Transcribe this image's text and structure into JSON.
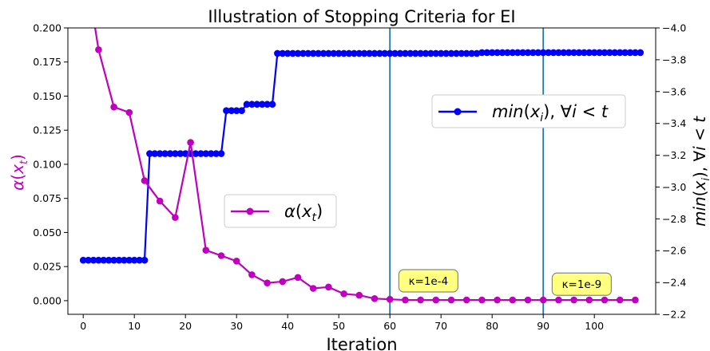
{
  "chart_data": {
    "type": "line",
    "title": "Illustration of Stopping Criteria for EI",
    "xlabel": "Iteration",
    "ylabel_left": "α(x_t)",
    "ylabel_right": "min(x_i), ∀i < t",
    "xlim": [
      -3,
      112
    ],
    "ylim_left": [
      -0.01,
      0.2
    ],
    "ylim_right": [
      -2.2,
      -4.0
    ],
    "right_axis_inverted": true,
    "grid": false,
    "x_ticks": [
      0,
      10,
      20,
      30,
      40,
      50,
      60,
      70,
      80,
      90,
      100
    ],
    "y_left_ticks": [
      0.0,
      0.025,
      0.05,
      0.075,
      0.1,
      0.125,
      0.15,
      0.175,
      0.2
    ],
    "y_left_tick_labels": [
      "0.000",
      "0.025",
      "0.050",
      "0.075",
      "0.100",
      "0.125",
      "0.150",
      "0.175",
      "0.200"
    ],
    "y_right_ticks": [
      -2.2,
      -2.4,
      -2.6,
      -2.8,
      -3.0,
      -3.2,
      -3.4,
      -3.6,
      -3.8,
      -4.0
    ],
    "y_right_tick_labels": [
      "−2.2",
      "−2.4",
      "−2.6",
      "−2.8",
      "−3.0",
      "−3.2",
      "−3.4",
      "−3.6",
      "−3.8",
      "−4.0"
    ],
    "vlines": [
      60,
      90
    ],
    "annotations": [
      {
        "text": "κ=1e-4",
        "x": 63,
        "y_left": 0.014
      },
      {
        "text": "κ=1e-9",
        "x": 93,
        "y_left": 0.0115
      }
    ],
    "series": [
      {
        "name": "α(x_t)",
        "axis": "left",
        "color": "#bf00bf",
        "x": [
          0,
          3,
          6,
          9,
          12,
          15,
          18,
          21,
          24,
          27,
          30,
          33,
          36,
          39,
          42,
          45,
          48,
          51,
          54,
          57,
          60,
          63,
          66,
          69,
          72,
          75,
          78,
          81,
          84,
          87,
          90,
          93,
          96,
          99,
          102,
          105,
          108
        ],
        "values": [
          0.255,
          0.184,
          0.142,
          0.138,
          0.088,
          0.073,
          0.061,
          0.116,
          0.037,
          0.033,
          0.029,
          0.019,
          0.013,
          0.014,
          0.017,
          0.009,
          0.01,
          0.005,
          0.004,
          0.0015,
          0.001,
          0.0005,
          0.0005,
          0.0005,
          0.0005,
          0.0005,
          0.0005,
          0.0005,
          0.0005,
          0.0005,
          0.0005,
          0.0005,
          0.0005,
          0.0005,
          0.0005,
          0.0005,
          0.0005
        ]
      },
      {
        "name": "min(x_i), ∀i < t",
        "axis": "right",
        "color": "#0000ff",
        "segments": [
          {
            "from": 0,
            "to": 12,
            "value": -2.54
          },
          {
            "from": 13,
            "to": 27,
            "value": -3.21
          },
          {
            "from": 28,
            "to": 31,
            "value": -3.48
          },
          {
            "from": 32,
            "to": 37,
            "value": -3.52
          },
          {
            "from": 38,
            "to": 77,
            "value": -3.84
          },
          {
            "from": 78,
            "to": 109,
            "value": -3.845
          }
        ]
      }
    ],
    "legend": [
      {
        "series": "min(x_i), ∀i < t",
        "placement": "upper-right"
      },
      {
        "series": "α(x_t)",
        "placement": "center"
      }
    ]
  }
}
